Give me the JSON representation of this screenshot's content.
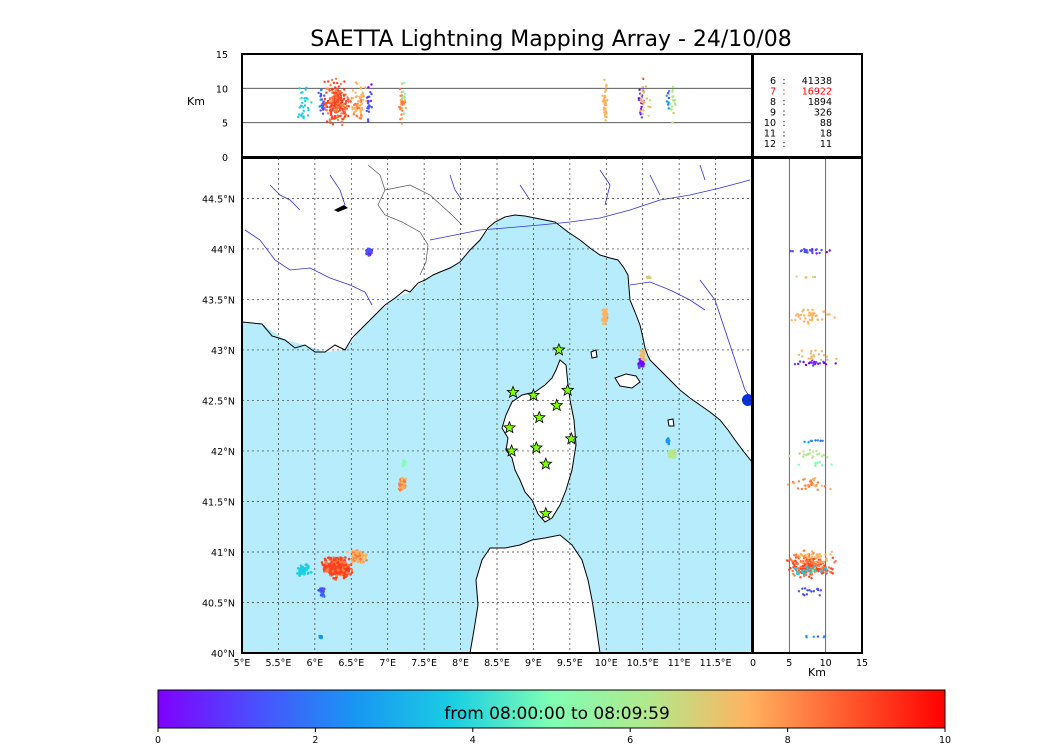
{
  "chart_data": {
    "type": "scatter",
    "title": "SAETTA Lightning Mapping Array - 24/10/08",
    "map": {
      "xlim": [
        5,
        12
      ],
      "ylim": [
        40,
        44.9
      ],
      "x_ticks": [
        "5°E",
        "5.5°E",
        "6°E",
        "6.5°E",
        "7°E",
        "7.5°E",
        "8°E",
        "8.5°E",
        "9°E",
        "9.5°E",
        "10°E",
        "10.5°E",
        "11°E",
        "11.5°E"
      ],
      "x_tick_values": [
        5,
        5.5,
        6,
        6.5,
        7,
        7.5,
        8,
        8.5,
        9,
        9.5,
        10,
        10.5,
        11,
        11.5
      ],
      "y_ticks": [
        "40°N",
        "40.5°N",
        "41°N",
        "41.5°N",
        "42°N",
        "42.5°N",
        "43°N",
        "43.5°N",
        "44°N",
        "44.5°N"
      ],
      "y_tick_values": [
        40,
        40.5,
        41,
        41.5,
        42,
        42.5,
        43,
        43.5,
        44,
        44.5
      ],
      "grid": true,
      "sea_color": "#b6ecfb",
      "stations": [
        {
          "lon": 9.35,
          "lat": 43.0
        },
        {
          "lon": 8.72,
          "lat": 42.58
        },
        {
          "lon": 9.0,
          "lat": 42.55
        },
        {
          "lon": 9.47,
          "lat": 42.6
        },
        {
          "lon": 9.32,
          "lat": 42.45
        },
        {
          "lon": 9.08,
          "lat": 42.33
        },
        {
          "lon": 8.67,
          "lat": 42.23
        },
        {
          "lon": 9.52,
          "lat": 42.12
        },
        {
          "lon": 8.7,
          "lat": 42.0
        },
        {
          "lon": 9.04,
          "lat": 42.03
        },
        {
          "lon": 9.17,
          "lat": 41.87
        },
        {
          "lon": 9.17,
          "lat": 41.38
        }
      ],
      "clusters": [
        {
          "lon": 6.3,
          "lat": 40.85,
          "dx": 0.25,
          "dy": 0.13,
          "t": 8.6,
          "n": 420
        },
        {
          "lon": 6.6,
          "lat": 40.95,
          "dx": 0.18,
          "dy": 0.08,
          "t": 7.4,
          "n": 120
        },
        {
          "lon": 5.85,
          "lat": 40.83,
          "dx": 0.12,
          "dy": 0.08,
          "t": 3.0,
          "n": 60
        },
        {
          "lon": 6.1,
          "lat": 40.6,
          "dx": 0.06,
          "dy": 0.08,
          "t": 1.0,
          "n": 30
        },
        {
          "lon": 6.08,
          "lat": 40.16,
          "dx": 0.03,
          "dy": 0.02,
          "t": 1.5,
          "n": 12
        },
        {
          "lon": 7.2,
          "lat": 41.67,
          "dx": 0.06,
          "dy": 0.08,
          "t": 7.5,
          "n": 70
        },
        {
          "lon": 7.22,
          "lat": 41.88,
          "dx": 0.03,
          "dy": 0.04,
          "t": 4.2,
          "n": 15
        },
        {
          "lon": 6.75,
          "lat": 43.97,
          "dx": 0.06,
          "dy": 0.05,
          "t": 0.8,
          "n": 45
        },
        {
          "lon": 9.98,
          "lat": 43.34,
          "dx": 0.05,
          "dy": 0.12,
          "t": 7.0,
          "n": 80
        },
        {
          "lon": 10.48,
          "lat": 42.87,
          "dx": 0.06,
          "dy": 0.06,
          "t": 0.5,
          "n": 40
        },
        {
          "lon": 10.5,
          "lat": 42.95,
          "dx": 0.05,
          "dy": 0.08,
          "t": 6.2,
          "n": 40
        },
        {
          "lon": 10.9,
          "lat": 41.97,
          "dx": 0.08,
          "dy": 0.08,
          "t": 5.0,
          "n": 40
        },
        {
          "lon": 10.85,
          "lat": 42.1,
          "dx": 0.03,
          "dy": 0.04,
          "t": 1.6,
          "n": 15
        },
        {
          "lon": 10.58,
          "lat": 43.72,
          "dx": 0.06,
          "dy": 0.02,
          "t": 5.5,
          "n": 10
        }
      ]
    },
    "top_panel": {
      "ylabel": "Km",
      "ylim": [
        0,
        15
      ],
      "y_ticks": [
        "0",
        "5",
        "10",
        "15"
      ],
      "y_tick_values": [
        0,
        5,
        10,
        15
      ],
      "hlines": [
        5,
        10
      ]
    },
    "right_panel": {
      "xlabel": "Km",
      "xlim": [
        0,
        15
      ],
      "x_ticks": [
        "0",
        "5",
        "10",
        "15"
      ],
      "x_tick_values": [
        0,
        5,
        10,
        15
      ],
      "vlines": [
        5,
        10
      ]
    },
    "stations_count": {
      "rows": [
        {
          "k": "6",
          "sep": ":",
          "v": "41338",
          "color": "#000000"
        },
        {
          "k": "7",
          "sep": ":",
          "v": "16922",
          "color": "#ff0000"
        },
        {
          "k": "8",
          "sep": ":",
          "v": "1894",
          "color": "#000000"
        },
        {
          "k": "9",
          "sep": ":",
          "v": "326",
          "color": "#000000"
        },
        {
          "k": "10",
          "sep": ":",
          "v": "88",
          "color": "#000000"
        },
        {
          "k": "11",
          "sep": ":",
          "v": "18",
          "color": "#000000"
        },
        {
          "k": "12",
          "sep": ":",
          "v": "11",
          "color": "#000000"
        }
      ]
    },
    "colorbar": {
      "label": "from 08:00:00 to 08:09:59",
      "range": [
        0,
        10
      ],
      "ticks": [
        "0",
        "2",
        "4",
        "6",
        "8",
        "10"
      ],
      "tick_values": [
        0,
        2,
        4,
        6,
        8,
        10
      ],
      "colormap": "rainbow"
    }
  }
}
